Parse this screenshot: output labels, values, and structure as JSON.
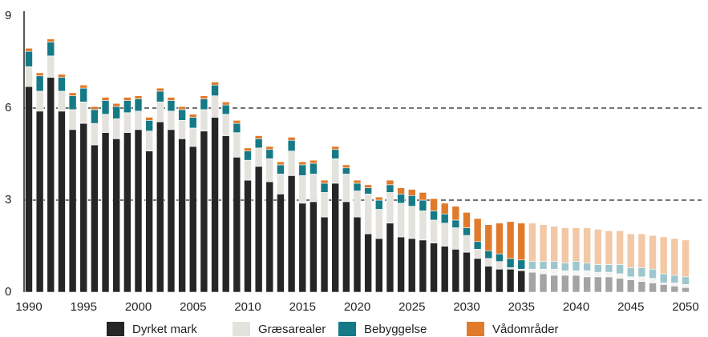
{
  "chart_data": {
    "type": "stacked_bar",
    "x": [
      1990,
      1991,
      1992,
      1993,
      1994,
      1995,
      1996,
      1997,
      1998,
      1999,
      2000,
      2001,
      2002,
      2003,
      2004,
      2005,
      2006,
      2007,
      2008,
      2009,
      2010,
      2011,
      2012,
      2013,
      2014,
      2015,
      2016,
      2017,
      2018,
      2019,
      2020,
      2021,
      2022,
      2023,
      2024,
      2025,
      2026,
      2027,
      2028,
      2029,
      2030,
      2031,
      2032,
      2033,
      2034,
      2035,
      2036,
      2037,
      2038,
      2039,
      2040,
      2041,
      2042,
      2043,
      2044,
      2045,
      2046,
      2047,
      2048,
      2049,
      2050
    ],
    "series": [
      {
        "name": "Dyrket mark",
        "color": "#262626",
        "values": [
          6.7,
          5.9,
          7.0,
          5.9,
          5.3,
          5.5,
          4.8,
          5.2,
          5.0,
          5.2,
          5.3,
          4.6,
          5.55,
          5.3,
          5.0,
          4.75,
          5.25,
          5.7,
          5.1,
          4.4,
          3.65,
          4.1,
          3.6,
          3.2,
          3.8,
          2.9,
          2.95,
          2.45,
          3.55,
          2.95,
          2.45,
          1.9,
          1.75,
          2.25,
          1.8,
          1.75,
          1.7,
          1.6,
          1.5,
          1.4,
          1.3,
          1.1,
          0.85,
          0.75,
          0.75,
          0.7,
          0.65,
          0.6,
          0.55,
          0.55,
          0.55,
          0.5,
          0.5,
          0.5,
          0.45,
          0.4,
          0.35,
          0.3,
          0.25,
          0.2,
          0.15
        ]
      },
      {
        "name": "Græsarealer",
        "color": "#e4e2dc",
        "values": [
          0.65,
          0.65,
          0.7,
          0.65,
          0.65,
          0.7,
          0.7,
          0.6,
          0.65,
          0.65,
          0.6,
          0.65,
          0.65,
          0.6,
          0.6,
          0.6,
          0.7,
          0.7,
          0.7,
          0.8,
          0.65,
          0.6,
          0.75,
          0.65,
          0.8,
          0.9,
          0.9,
          0.8,
          0.8,
          0.9,
          0.85,
          1.3,
          0.95,
          1.0,
          1.1,
          1.05,
          0.95,
          0.75,
          0.75,
          0.7,
          0.55,
          0.3,
          0.25,
          0.25,
          0.05,
          0.05,
          0.1,
          0.15,
          0.2,
          0.15,
          0.15,
          0.2,
          0.15,
          0.15,
          0.15,
          0.1,
          0.15,
          0.15,
          0.05,
          0.1,
          0.1
        ]
      },
      {
        "name": "Bebyggelse",
        "color": "#167a86",
        "values": [
          0.5,
          0.5,
          0.45,
          0.45,
          0.45,
          0.45,
          0.45,
          0.45,
          0.4,
          0.4,
          0.4,
          0.35,
          0.35,
          0.35,
          0.35,
          0.35,
          0.35,
          0.35,
          0.3,
          0.3,
          0.3,
          0.3,
          0.3,
          0.3,
          0.35,
          0.35,
          0.35,
          0.3,
          0.3,
          0.2,
          0.25,
          0.2,
          0.3,
          0.25,
          0.3,
          0.35,
          0.35,
          0.3,
          0.3,
          0.25,
          0.25,
          0.25,
          0.25,
          0.25,
          0.3,
          0.3,
          0.25,
          0.25,
          0.25,
          0.25,
          0.3,
          0.25,
          0.25,
          0.25,
          0.3,
          0.3,
          0.3,
          0.3,
          0.3,
          0.25,
          0.25
        ]
      },
      {
        "name": "Vådområder",
        "color": "#e07b2c",
        "values": [
          0.1,
          0.1,
          0.1,
          0.1,
          0.1,
          0.1,
          0.1,
          0.1,
          0.1,
          0.1,
          0.1,
          0.1,
          0.1,
          0.1,
          0.1,
          0.1,
          0.1,
          0.1,
          0.1,
          0.1,
          0.1,
          0.1,
          0.1,
          0.1,
          0.1,
          0.1,
          0.1,
          0.1,
          0.1,
          0.1,
          0.1,
          0.1,
          0.1,
          0.15,
          0.2,
          0.2,
          0.25,
          0.4,
          0.35,
          0.45,
          0.5,
          0.75,
          0.85,
          1.0,
          1.2,
          1.2,
          1.25,
          1.2,
          1.15,
          1.15,
          1.1,
          1.15,
          1.15,
          1.1,
          1.1,
          1.1,
          1.1,
          1.1,
          1.2,
          1.2,
          1.2
        ]
      }
    ],
    "ylim": [
      0,
      9
    ],
    "yticks": [
      0,
      3,
      6,
      9
    ],
    "xticks": [
      1990,
      1995,
      2000,
      2005,
      2010,
      2015,
      2020,
      2025,
      2030,
      2035,
      2040,
      2045,
      2050
    ],
    "grid": "dashed",
    "projection_start": 2036
  }
}
